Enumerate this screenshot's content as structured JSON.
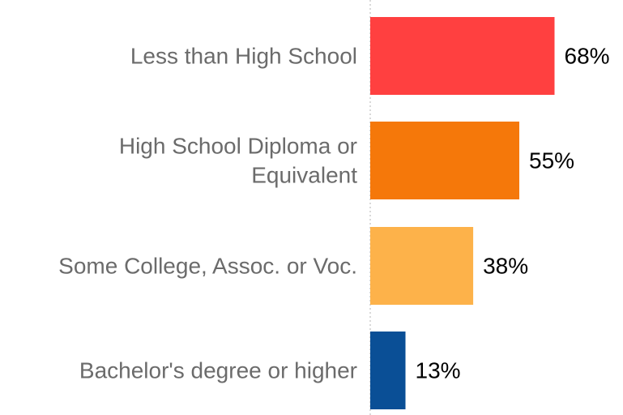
{
  "chart_data": {
    "type": "bar",
    "orientation": "horizontal",
    "categories": [
      [
        "Less than High School"
      ],
      [
        "High School Diploma or",
        "Equivalent"
      ],
      [
        "Some College, Assoc. or Voc."
      ],
      [
        "Bachelor's degree or higher"
      ]
    ],
    "values": [
      68,
      55,
      38,
      13
    ],
    "value_labels": [
      "68%",
      "55%",
      "38%",
      "13%"
    ],
    "colors": [
      "#ff4040",
      "#f5780a",
      "#fdb24a",
      "#0a4f96"
    ],
    "xlim": [
      0,
      100
    ],
    "grid": false,
    "legend": "none",
    "title": "",
    "xlabel": "",
    "ylabel": ""
  }
}
